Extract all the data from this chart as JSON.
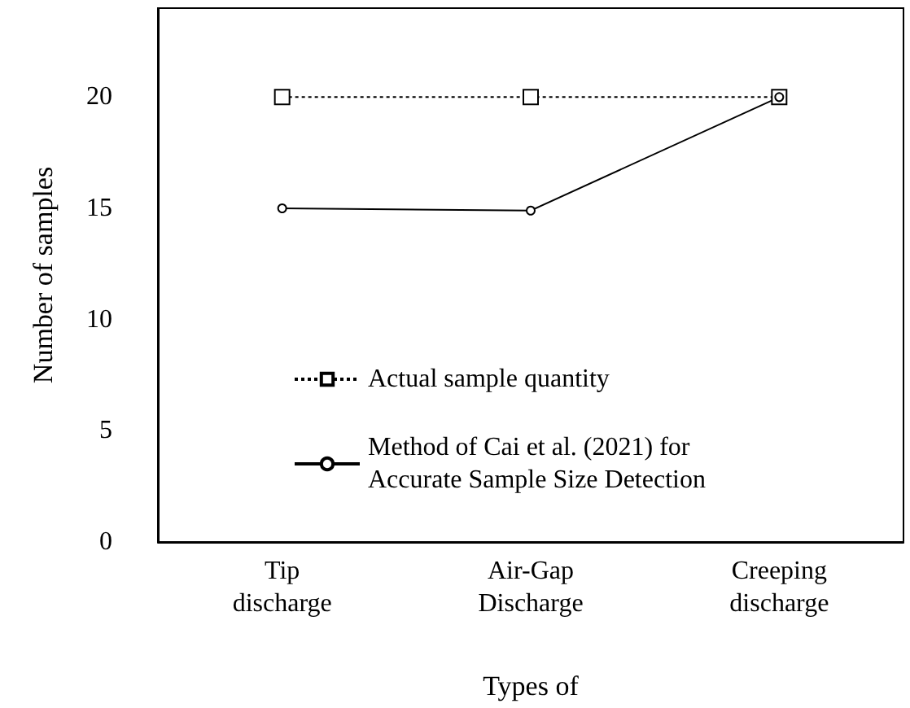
{
  "chart_data": {
    "type": "line",
    "xlabel": "Types of",
    "ylabel": "Number of samples",
    "categories": [
      "Tip discharge",
      "Air-Gap Discharge",
      "Creeping discharge"
    ],
    "series": [
      {
        "name": "Actual sample quantity",
        "color": "#000000",
        "values": [
          20,
          20,
          20
        ],
        "marker": "square",
        "line_style": "dotted"
      },
      {
        "name": "Method of Cai et al. (2021) for Accurate Sample Size Detection",
        "color": "#000000",
        "values": [
          15,
          14.9,
          20
        ],
        "marker": "circle",
        "line_style": "solid"
      }
    ],
    "ylim": [
      0,
      24
    ],
    "yticks": [
      0,
      5,
      10,
      15,
      20
    ],
    "grid": false,
    "legend": "bottom"
  }
}
